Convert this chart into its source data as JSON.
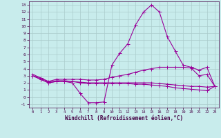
{
  "x": [
    0,
    1,
    2,
    3,
    4,
    5,
    6,
    7,
    8,
    9,
    10,
    11,
    12,
    13,
    14,
    15,
    16,
    17,
    18,
    19,
    20,
    21,
    22,
    23
  ],
  "line1": [
    3.0,
    2.5,
    2.0,
    2.2,
    2.2,
    2.0,
    0.5,
    -0.8,
    -0.8,
    -0.7,
    4.5,
    6.2,
    7.5,
    10.2,
    12.0,
    13.0,
    12.0,
    8.5,
    6.5,
    4.5,
    4.2,
    3.8,
    4.2,
    1.5
  ],
  "line2": [
    3.0,
    2.7,
    2.2,
    2.5,
    2.5,
    2.5,
    2.5,
    2.4,
    2.4,
    2.5,
    2.8,
    3.0,
    3.2,
    3.5,
    3.8,
    4.0,
    4.2,
    4.2,
    4.2,
    4.2,
    4.1,
    3.0,
    3.2,
    1.5
  ],
  "line3": [
    3.0,
    2.5,
    2.0,
    2.2,
    2.2,
    2.2,
    2.1,
    2.0,
    2.0,
    2.0,
    2.0,
    2.0,
    2.0,
    2.0,
    2.0,
    2.0,
    1.9,
    1.8,
    1.7,
    1.6,
    1.5,
    1.5,
    1.4,
    1.5
  ],
  "line4": [
    3.2,
    2.7,
    2.1,
    2.3,
    2.3,
    2.2,
    2.0,
    1.9,
    1.9,
    1.9,
    1.9,
    1.9,
    1.9,
    1.8,
    1.8,
    1.7,
    1.6,
    1.5,
    1.3,
    1.2,
    1.1,
    1.0,
    0.9,
    1.5
  ],
  "line_color": "#990099",
  "markersize": 1.8,
  "bg_color": "#c8ecec",
  "grid_color": "#aacccc",
  "xlabel": "Windchill (Refroidissement éolien,°C)",
  "ylim": [
    -1.5,
    13.5
  ],
  "xlim": [
    -0.5,
    23.5
  ],
  "yticks": [
    -1,
    0,
    1,
    2,
    3,
    4,
    5,
    6,
    7,
    8,
    9,
    10,
    11,
    12,
    13
  ],
  "xticks": [
    0,
    1,
    2,
    3,
    4,
    5,
    6,
    7,
    8,
    9,
    10,
    11,
    12,
    13,
    14,
    15,
    16,
    17,
    18,
    19,
    20,
    21,
    22,
    23
  ]
}
